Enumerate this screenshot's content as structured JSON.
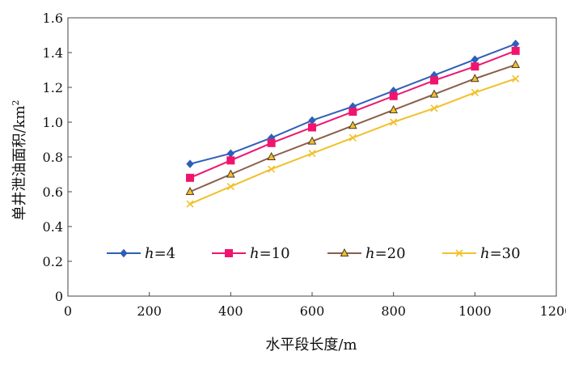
{
  "chart_data": {
    "type": "line",
    "xlabel": "水平段长度/m",
    "ylabel": "单井泄油面积/km",
    "ylabel_sup": "2",
    "xlim": [
      0,
      1200
    ],
    "ylim": [
      0,
      1.6
    ],
    "xticks": [
      "0",
      "200",
      "400",
      "600",
      "800",
      "1000",
      "1200"
    ],
    "yticks": [
      "0",
      "0.2",
      "0.4",
      "0.6",
      "0.8",
      "1.0",
      "1.2",
      "1.4",
      "1.6"
    ],
    "grid": false,
    "legend_position": "bottom",
    "x": [
      300,
      400,
      500,
      600,
      700,
      800,
      900,
      1000,
      1100
    ],
    "series": [
      {
        "name": "h=4",
        "name_var": "h",
        "name_val": "=4",
        "color": "#2e5fb8",
        "marker": "diamond",
        "values": [
          0.76,
          0.82,
          0.91,
          1.01,
          1.09,
          1.18,
          1.27,
          1.36,
          1.45
        ]
      },
      {
        "name": "h=10",
        "name_var": "h",
        "name_val": "=10",
        "color": "#f0146e",
        "marker": "square",
        "values": [
          0.68,
          0.78,
          0.88,
          0.97,
          1.06,
          1.15,
          1.24,
          1.32,
          1.41
        ]
      },
      {
        "name": "h=20",
        "name_var": "h",
        "name_val": "=20",
        "color": "#8b5e4a",
        "marker": "triangle",
        "values": [
          0.6,
          0.7,
          0.8,
          0.89,
          0.98,
          1.07,
          1.16,
          1.25,
          1.33
        ]
      },
      {
        "name": "h=30",
        "name_var": "h",
        "name_val": "=30",
        "color": "#f2c02a",
        "marker": "x",
        "values": [
          0.53,
          0.63,
          0.73,
          0.82,
          0.91,
          1.0,
          1.08,
          1.17,
          1.25
        ]
      }
    ]
  }
}
